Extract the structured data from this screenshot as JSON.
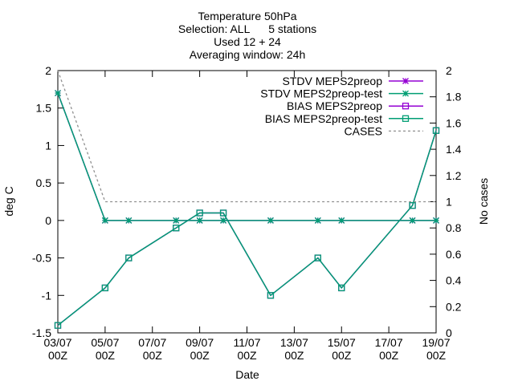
{
  "chart_data": {
    "type": "line",
    "title_lines": [
      "Temperature 50hPa",
      "Selection: ALL      5 stations",
      "Used 12 + 24",
      "Averaging window: 24h"
    ],
    "xlabel": "Date",
    "ylabel": "deg C",
    "y2label": "No cases",
    "x_start": "2024-07-03T00Z",
    "xlim": [
      "03/07 00Z",
      "19/07 00Z"
    ],
    "xticks": [
      {
        "date": "03/07",
        "time": "00Z"
      },
      {
        "date": "05/07",
        "time": "00Z"
      },
      {
        "date": "07/07",
        "time": "00Z"
      },
      {
        "date": "09/07",
        "time": "00Z"
      },
      {
        "date": "11/07",
        "time": "00Z"
      },
      {
        "date": "13/07",
        "time": "00Z"
      },
      {
        "date": "15/07",
        "time": "00Z"
      },
      {
        "date": "17/07",
        "time": "00Z"
      },
      {
        "date": "19/07",
        "time": "00Z"
      }
    ],
    "ylim": [
      -1.5,
      2
    ],
    "yticks": [
      "-1.5",
      "-1",
      "-0.5",
      "0",
      "0.5",
      "1",
      "1.5",
      "2"
    ],
    "y2lim": [
      0,
      2
    ],
    "y2ticks": [
      "0",
      "0.2",
      "0.4",
      "0.6",
      "0.8",
      "1",
      "1.2",
      "1.4",
      "1.6",
      "1.8",
      "2"
    ],
    "legend_position": "top-right",
    "series": [
      {
        "name": "STDV MEPS2preop",
        "color": "#9400d3",
        "marker": "star",
        "axis": "y1",
        "x": [
          "03/07 00Z",
          "05/07 00Z",
          "06/07 00Z",
          "08/07 00Z",
          "09/07 00Z",
          "10/07 00Z",
          "12/07 00Z",
          "14/07 00Z",
          "15/07 00Z",
          "18/07 00Z",
          "19/07 00Z"
        ],
        "y": [
          1.7,
          0,
          0,
          0,
          0,
          0,
          0,
          0,
          0,
          0,
          0
        ]
      },
      {
        "name": "STDV MEPS2preop-test",
        "color": "#009e73",
        "marker": "star",
        "axis": "y1",
        "x": [
          "03/07 00Z",
          "05/07 00Z",
          "06/07 00Z",
          "08/07 00Z",
          "09/07 00Z",
          "10/07 00Z",
          "12/07 00Z",
          "14/07 00Z",
          "15/07 00Z",
          "18/07 00Z",
          "19/07 00Z"
        ],
        "y": [
          1.7,
          0,
          0,
          0,
          0,
          0,
          0,
          0,
          0,
          0,
          0
        ]
      },
      {
        "name": "BIAS MEPS2preop",
        "color": "#9400d3",
        "marker": "square",
        "axis": "y1",
        "x": [
          "03/07 00Z",
          "05/07 00Z",
          "06/07 00Z",
          "08/07 00Z",
          "09/07 00Z",
          "10/07 00Z",
          "12/07 00Z",
          "14/07 00Z",
          "15/07 00Z",
          "18/07 00Z",
          "19/07 00Z"
        ],
        "y": [
          -1.4,
          -0.9,
          -0.5,
          -0.1,
          0.1,
          0.1,
          -1.0,
          -0.5,
          -0.9,
          0.2,
          1.2
        ]
      },
      {
        "name": "BIAS MEPS2preop-test",
        "color": "#009e73",
        "marker": "square",
        "axis": "y1",
        "x": [
          "03/07 00Z",
          "05/07 00Z",
          "06/07 00Z",
          "08/07 00Z",
          "09/07 00Z",
          "10/07 00Z",
          "12/07 00Z",
          "14/07 00Z",
          "15/07 00Z",
          "18/07 00Z",
          "19/07 00Z"
        ],
        "y": [
          -1.4,
          -0.9,
          -0.5,
          -0.1,
          0.1,
          0.1,
          -1.0,
          -0.5,
          -0.9,
          0.2,
          1.2
        ]
      },
      {
        "name": "CASES",
        "color": "#909090",
        "marker": "none",
        "dashed": true,
        "axis": "y2",
        "x": [
          "03/07 00Z",
          "05/07 00Z",
          "19/07 00Z"
        ],
        "y": [
          2,
          1,
          1
        ]
      }
    ]
  }
}
